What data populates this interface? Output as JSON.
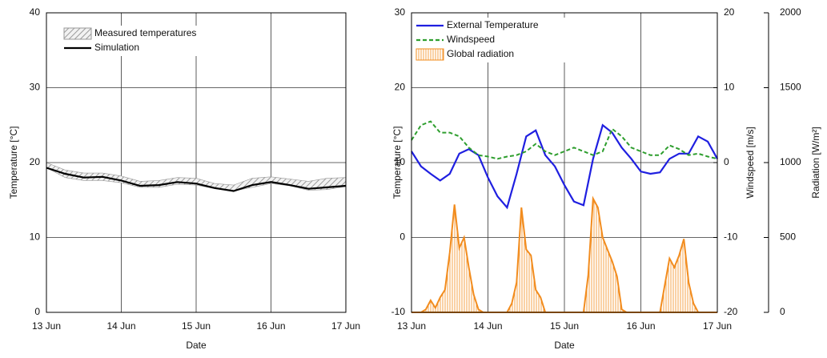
{
  "chart_data": [
    {
      "type": "line",
      "x_label": "Date",
      "y_label": "Temperature [°C]",
      "xlim": [
        0,
        4
      ],
      "xticks": [
        {
          "value": 0,
          "label": "13 Jun"
        },
        {
          "value": 1,
          "label": "14 Jun"
        },
        {
          "value": 2,
          "label": "15 Jun"
        },
        {
          "value": 3,
          "label": "16 Jun"
        },
        {
          "value": 4,
          "label": "17 Jun"
        }
      ],
      "ylim": [
        0,
        40
      ],
      "yticks": [
        0,
        10,
        20,
        30,
        40
      ],
      "grid": true,
      "legend": "upper left",
      "x": [
        0,
        0.25,
        0.5,
        0.75,
        1,
        1.25,
        1.5,
        1.75,
        2,
        2.25,
        2.5,
        2.75,
        3,
        3.25,
        3.5,
        3.75,
        4
      ],
      "series": [
        {
          "name": "Measured temperatures",
          "style": "band",
          "color": "#999999",
          "lows": [
            19.3,
            18.0,
            17.6,
            17.6,
            17.3,
            16.7,
            16.7,
            17.1,
            17.0,
            16.5,
            16.2,
            16.7,
            17.2,
            16.9,
            16.3,
            16.4,
            16.8
          ],
          "highs": [
            20.0,
            19.0,
            18.6,
            18.6,
            18.2,
            17.5,
            17.6,
            18.0,
            17.9,
            17.2,
            17.0,
            17.9,
            18.1,
            17.8,
            17.5,
            17.9,
            18.0
          ]
        },
        {
          "name": "Simulation",
          "style": "line",
          "color": "#000000",
          "values": [
            19.3,
            18.5,
            18.0,
            18.1,
            17.6,
            16.9,
            17.0,
            17.4,
            17.2,
            16.6,
            16.2,
            17.0,
            17.4,
            17.0,
            16.5,
            16.7,
            16.9
          ]
        }
      ]
    },
    {
      "type": "line",
      "x_label": "Date",
      "y_label": "Temperature [°C]",
      "y2_label": "Windspeed [m/s]",
      "y3_label": "Radiation [W/m²]",
      "xlim": [
        0,
        4
      ],
      "xticks": [
        {
          "value": 0,
          "label": "13 Jun"
        },
        {
          "value": 1,
          "label": "14 Jun"
        },
        {
          "value": 2,
          "label": "15 Jun"
        },
        {
          "value": 3,
          "label": "16 Jun"
        },
        {
          "value": 4,
          "label": "17 Jun"
        }
      ],
      "ylim": [
        -10,
        30
      ],
      "yticks": [
        -10,
        0,
        10,
        20,
        30
      ],
      "y2lim": [
        -20,
        20
      ],
      "y2ticks": [
        -20,
        -10,
        0,
        10,
        20
      ],
      "y3lim": [
        0,
        2000
      ],
      "y3ticks": [
        0,
        500,
        1000,
        1500,
        2000
      ],
      "grid": true,
      "legend": "upper left",
      "x": [
        0,
        0.125,
        0.25,
        0.375,
        0.5,
        0.625,
        0.75,
        0.875,
        1,
        1.125,
        1.25,
        1.375,
        1.5,
        1.625,
        1.75,
        1.875,
        2,
        2.125,
        2.25,
        2.375,
        2.5,
        2.625,
        2.75,
        2.875,
        3,
        3.125,
        3.25,
        3.375,
        3.5,
        3.625,
        3.75,
        3.875,
        4
      ],
      "series": [
        {
          "name": "External Temperature",
          "style": "line",
          "color": "#1f1fe0",
          "values": [
            11.5,
            9.5,
            8.5,
            7.6,
            8.5,
            11.2,
            11.8,
            11.0,
            8.0,
            5.5,
            4.0,
            8.5,
            13.5,
            14.3,
            11.0,
            9.5,
            7.0,
            4.8,
            4.3,
            10.5,
            15.0,
            14.0,
            12.0,
            10.5,
            8.8,
            8.5,
            8.7,
            10.5,
            11.2,
            11.2,
            13.5,
            12.8,
            10.5
          ]
        },
        {
          "name": "Windspeed",
          "style": "dashed",
          "color": "#2e9e2e",
          "axis": "y2",
          "values": [
            3,
            5,
            5.5,
            4,
            4,
            3.5,
            2,
            1,
            0.8,
            0.5,
            0.8,
            1,
            1.5,
            2.5,
            1.5,
            1,
            1.5,
            2,
            1.5,
            1,
            1.5,
            4.5,
            3.5,
            2,
            1.5,
            1,
            1,
            2.3,
            1.8,
            1,
            1.2,
            0.8,
            0.5
          ]
        },
        {
          "name": "Global radiation",
          "style": "hatched-area",
          "color": "#f28c1e",
          "axis": "y3",
          "x": [
            0,
            0.0625,
            0.125,
            0.1875,
            0.25,
            0.3125,
            0.375,
            0.4375,
            0.5,
            0.5625,
            0.625,
            0.6875,
            0.75,
            0.8125,
            0.875,
            0.9375,
            1,
            1.0625,
            1.125,
            1.1875,
            1.25,
            1.3125,
            1.375,
            1.4375,
            1.5,
            1.5625,
            1.625,
            1.6875,
            1.75,
            1.8125,
            1.875,
            1.9375,
            2,
            2.0625,
            2.125,
            2.1875,
            2.25,
            2.3125,
            2.375,
            2.4375,
            2.5,
            2.5625,
            2.625,
            2.6875,
            2.75,
            2.8125,
            2.875,
            2.9375,
            3,
            3.0625,
            3.125,
            3.1875,
            3.25,
            3.3125,
            3.375,
            3.4375,
            3.5,
            3.5625,
            3.625,
            3.6875,
            3.75,
            3.8125,
            3.875,
            3.9375,
            4
          ],
          "values": [
            0,
            0,
            0,
            20,
            80,
            30,
            100,
            150,
            400,
            720,
            430,
            500,
            300,
            120,
            20,
            0,
            0,
            0,
            0,
            0,
            0,
            60,
            200,
            700,
            420,
            380,
            150,
            100,
            0,
            0,
            0,
            0,
            0,
            0,
            0,
            0,
            0,
            250,
            760,
            700,
            500,
            420,
            340,
            240,
            20,
            0,
            0,
            0,
            0,
            0,
            0,
            0,
            0,
            180,
            360,
            300,
            380,
            490,
            200,
            60,
            0,
            0,
            0,
            0,
            0
          ]
        }
      ]
    }
  ]
}
